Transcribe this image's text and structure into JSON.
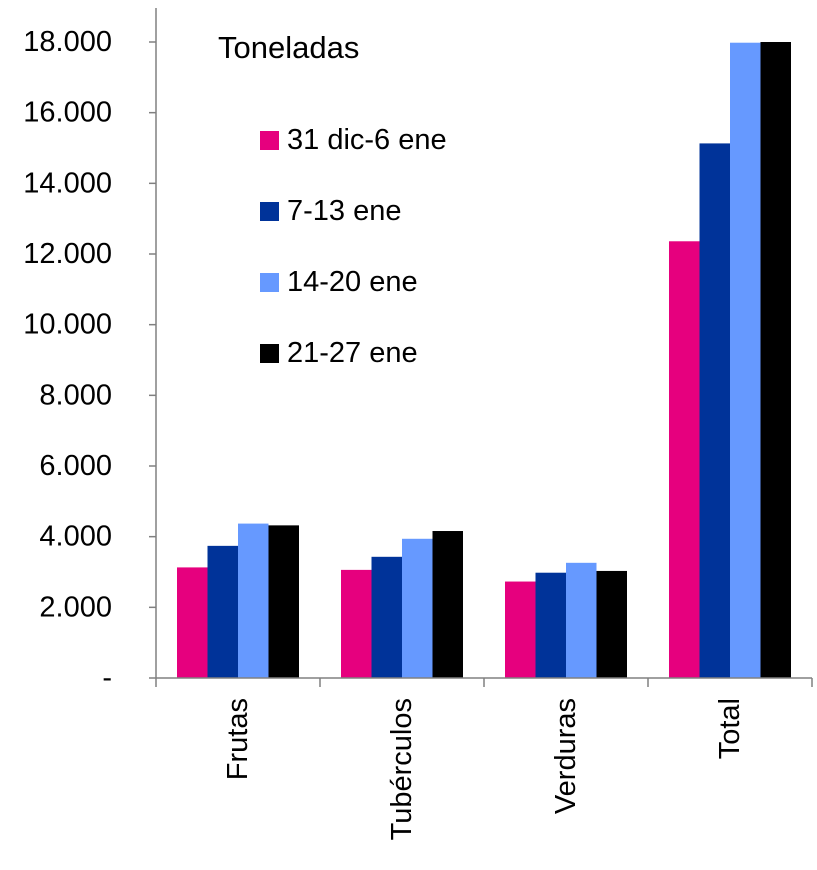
{
  "chart_data": {
    "type": "bar",
    "title": "Toneladas",
    "categories": [
      "Frutas",
      "Tubérculos",
      "Verduras",
      "Total"
    ],
    "series": [
      {
        "name": "31 dic-6 ene",
        "color": "#e6007e",
        "values": [
          3130,
          3060,
          2730,
          12360
        ]
      },
      {
        "name": "7-13 ene",
        "color": "#003399",
        "values": [
          3740,
          3430,
          2980,
          15130
        ]
      },
      {
        "name": "14-20 ene",
        "color": "#6699ff",
        "values": [
          4370,
          3940,
          3260,
          17980
        ]
      },
      {
        "name": "21-27 ene",
        "color": "#000000",
        "values": [
          4320,
          4160,
          3030,
          18000
        ]
      }
    ],
    "y_ticks": [
      {
        "value": 0,
        "label": "-"
      },
      {
        "value": 2000,
        "label": "2.000"
      },
      {
        "value": 4000,
        "label": "4.000"
      },
      {
        "value": 6000,
        "label": "6.000"
      },
      {
        "value": 8000,
        "label": "8.000"
      },
      {
        "value": 10000,
        "label": "10.000"
      },
      {
        "value": 12000,
        "label": "12.000"
      },
      {
        "value": 14000,
        "label": "14.000"
      },
      {
        "value": 16000,
        "label": "16.000"
      },
      {
        "value": 18000,
        "label": "18.000"
      }
    ],
    "ylim": [
      0,
      18000
    ],
    "xlabel": "",
    "ylabel": "",
    "grid": false,
    "legend_position": "top-left-inside"
  }
}
